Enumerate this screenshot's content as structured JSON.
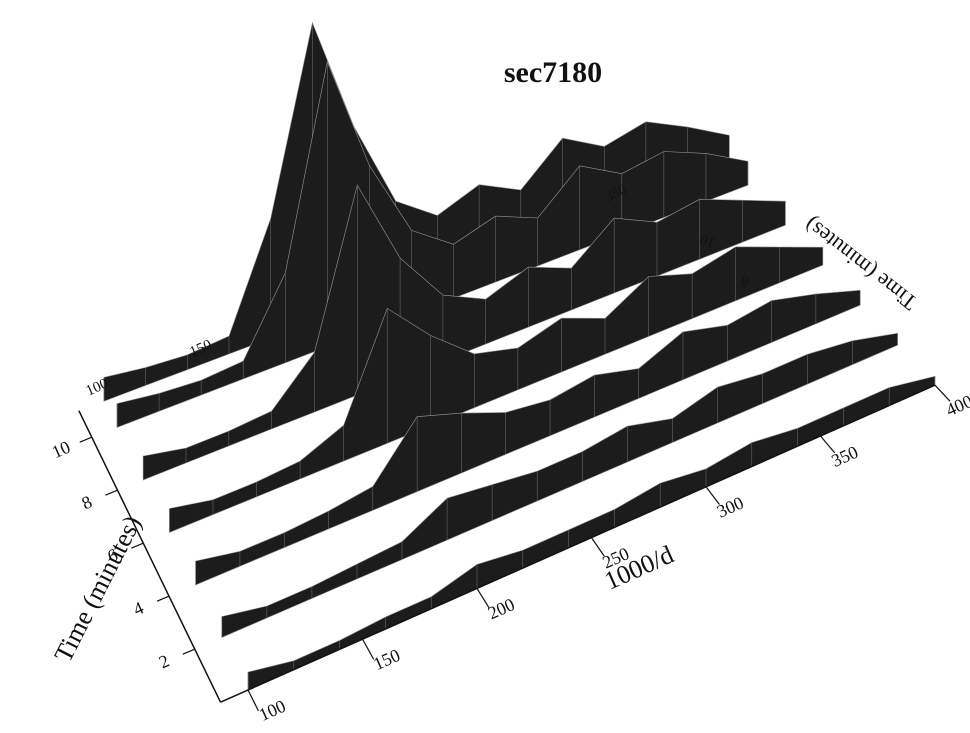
{
  "chart_data": {
    "type": "surface",
    "title": "sec7180",
    "xlabel": "1000/d",
    "tlabel": "Time (minutes)",
    "x": [
      100,
      120,
      140,
      160,
      180,
      200,
      220,
      240,
      260,
      280,
      300,
      320,
      340,
      360,
      380,
      400
    ],
    "xlim": [
      88,
      400
    ],
    "xticks": [
      100,
      150,
      200,
      250,
      300,
      350,
      400
    ],
    "tlim": [
      0,
      11
    ],
    "tticks": [
      2,
      4,
      6,
      8,
      10
    ],
    "back_xticks": [
      100,
      150,
      350
    ],
    "back_tticks": [
      10,
      8
    ],
    "zlim": [
      0,
      100
    ],
    "series": [
      {
        "t": 11,
        "values": [
          8,
          6,
          5,
          6,
          40,
          100,
          60,
          30,
          20,
          25,
          18,
          30,
          22,
          25,
          18,
          10
        ]
      },
      {
        "t": 10,
        "values": [
          8,
          6,
          5,
          6,
          30,
          95,
          55,
          28,
          18,
          22,
          16,
          28,
          20,
          22,
          16,
          8
        ]
      },
      {
        "t": 8,
        "values": [
          8,
          5,
          5,
          6,
          20,
          70,
          40,
          22,
          15,
          20,
          14,
          25,
          18,
          20,
          14,
          8
        ]
      },
      {
        "t": 6,
        "values": [
          8,
          5,
          5,
          6,
          12,
          45,
          30,
          18,
          14,
          18,
          12,
          20,
          15,
          18,
          12,
          6
        ]
      },
      {
        "t": 4,
        "values": [
          8,
          5,
          5,
          6,
          8,
          25,
          20,
          14,
          12,
          14,
          10,
          16,
          12,
          14,
          10,
          5
        ]
      },
      {
        "t": 2,
        "values": [
          7,
          4,
          4,
          5,
          6,
          14,
          12,
          10,
          10,
          12,
          8,
          12,
          10,
          10,
          8,
          4
        ]
      },
      {
        "t": 0,
        "values": [
          6,
          3,
          3,
          4,
          4,
          8,
          6,
          6,
          6,
          8,
          6,
          8,
          6,
          6,
          6,
          3
        ]
      }
    ]
  }
}
